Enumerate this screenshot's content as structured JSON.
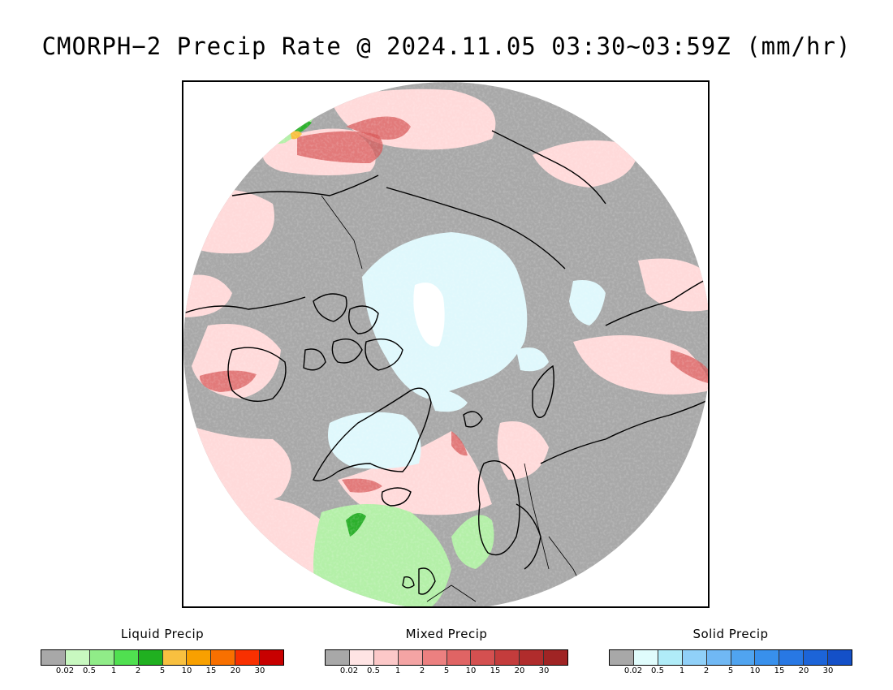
{
  "title": "CMORPH−2 Precip Rate @ 2024.11.05 03:30~03:59Z (mm/hr)",
  "map": {
    "projection": "north-polar-stereographic",
    "colors": {
      "ocean_dry": "#a8a8a8",
      "light_mixed": "#ffdada",
      "mixed_mid": "#f4a6a6",
      "mixed_heavy": "#d85a5a",
      "light_solid": "#dff8fc",
      "light_liquid": "#b4f0a8",
      "liquid_mid": "#6fdc6f",
      "liquid_heavy": "#2cb02c",
      "coast": "#000000"
    }
  },
  "legends": [
    {
      "title": "Liquid Precip",
      "colors": [
        "#a8a8a8",
        "#c8f8c0",
        "#90ec88",
        "#50e050",
        "#20b020",
        "#f8c040",
        "#f8a000",
        "#f87000",
        "#f83000",
        "#c80000"
      ],
      "labels": [
        "0.02",
        "0.5",
        "1",
        "2",
        "5",
        "10",
        "15",
        "20",
        "30"
      ]
    },
    {
      "title": "Mixed Precip",
      "colors": [
        "#a8a8a8",
        "#ffe4e4",
        "#fcc8c8",
        "#f4a4a4",
        "#ec8080",
        "#e06464",
        "#d45050",
        "#c43c3c",
        "#b02c2c",
        "#a02424"
      ],
      "labels": [
        "0.02",
        "0.5",
        "1",
        "2",
        "5",
        "10",
        "15",
        "20",
        "30"
      ]
    },
    {
      "title": "Solid Precip",
      "colors": [
        "#a8a8a8",
        "#e0fcfc",
        "#b0ecf8",
        "#90d0f8",
        "#70b8f4",
        "#50a4f0",
        "#3890ec",
        "#2878e4",
        "#1c64d8",
        "#1450c8"
      ],
      "labels": [
        "0.02",
        "0.5",
        "1",
        "2",
        "5",
        "10",
        "15",
        "20",
        "30"
      ]
    }
  ]
}
